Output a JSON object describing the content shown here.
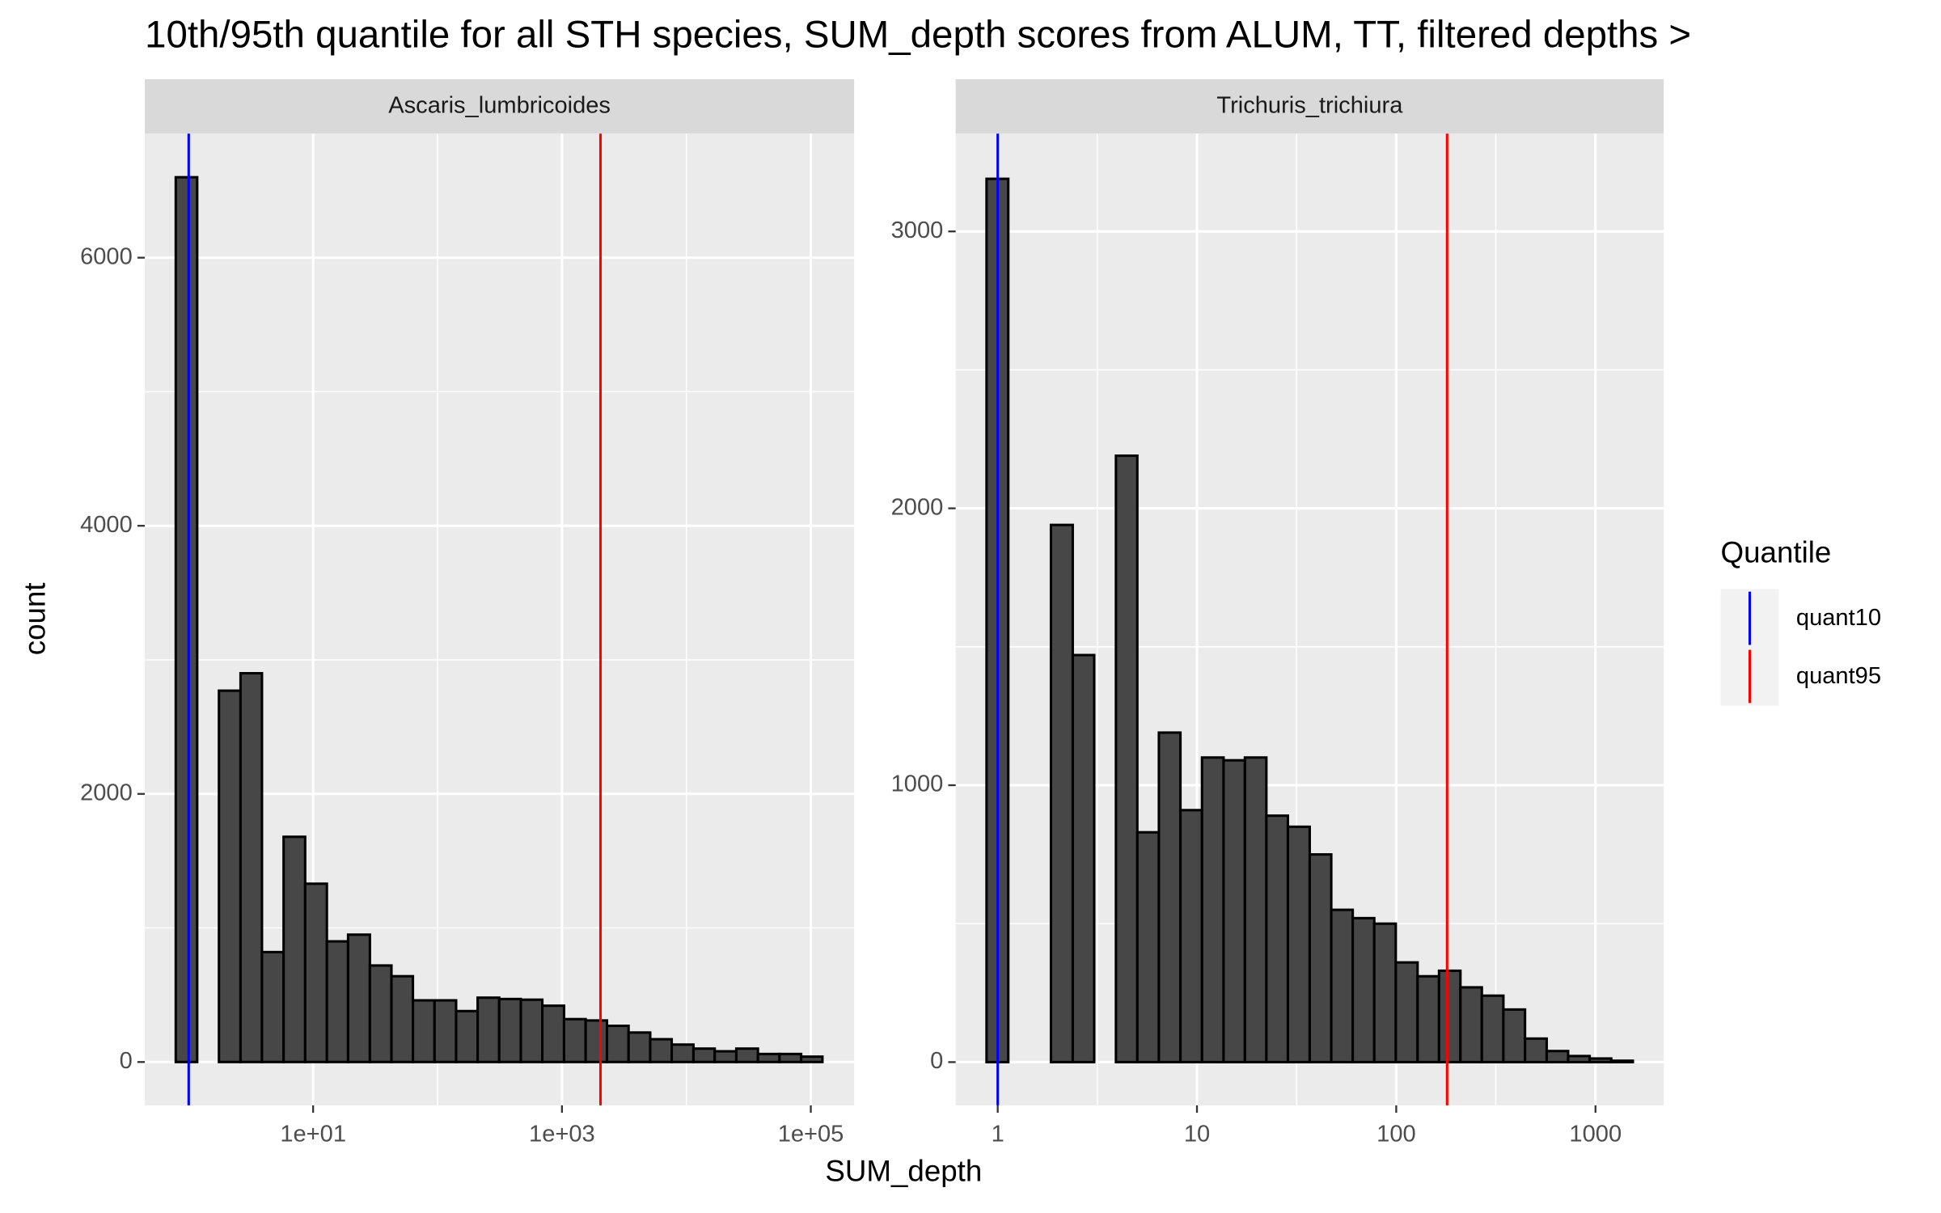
{
  "figure": {
    "title": "10th/95th quantile for all STH species, SUM_depth scores from ALUM, TT, filtered depths >",
    "x_label": "SUM_depth",
    "y_label": "count",
    "legend": {
      "title": "Quantile",
      "items": [
        {
          "name": "quant10",
          "color": "#0000ff"
        },
        {
          "name": "quant95",
          "color": "#ff0000"
        }
      ]
    }
  },
  "chart_data": [
    {
      "type": "histogram",
      "strip": "Ascaris_lumbricoides",
      "log_x": true,
      "grid": true,
      "color": "#474747",
      "bins": [
        0.787,
        1.17,
        1.75,
        2.61,
        3.88,
        5.79,
        8.63,
        12.9,
        19.1,
        28.6,
        42.6,
        63.4,
        94.6,
        141,
        210,
        313,
        467,
        695,
        1040,
        1550,
        2300,
        3430,
        5120,
        7620,
        11400,
        16900,
        25200,
        37600,
        56000,
        83600,
        124000
      ],
      "values": [
        6600,
        0,
        2770,
        2900,
        820,
        1680,
        1330,
        900,
        950,
        720,
        640,
        460,
        460,
        380,
        480,
        470,
        465,
        420,
        320,
        310,
        270,
        220,
        170,
        130,
        100,
        80,
        100,
        60,
        60,
        40
      ],
      "xlim": [
        0.444,
        223000
      ],
      "ylim": [
        -323,
        6925
      ],
      "xticks": [
        {
          "value": 10,
          "label": "1e+01"
        },
        {
          "value": 1000,
          "label": "1e+03"
        },
        {
          "value": 100000,
          "label": "1e+05"
        }
      ],
      "yticks": [
        0,
        2000,
        4000,
        6000
      ],
      "x_minor_ticks": [
        1,
        100,
        10000
      ],
      "y_minor_ticks": [
        1000,
        3000,
        5000
      ],
      "vlines": [
        {
          "value": 1,
          "color": "#0000ff"
        },
        {
          "value": 2040,
          "color": "#ff0000"
        }
      ]
    },
    {
      "type": "histogram",
      "strip": "Trichuris_trichiura",
      "log_x": true,
      "grid": true,
      "color": "#474747",
      "bins": [
        0.879,
        1.13,
        1.45,
        1.85,
        2.38,
        3.05,
        3.92,
        5.02,
        6.44,
        8.26,
        10.6,
        13.6,
        17.4,
        22.3,
        28.6,
        36.8,
        47.2,
        60.5,
        77.6,
        99.5,
        128,
        164,
        210,
        269,
        345,
        443,
        569,
        729,
        935,
        1200,
        1540
      ],
      "values": [
        3190,
        0,
        0,
        1940,
        1470,
        0,
        2190,
        830,
        1190,
        910,
        1100,
        1090,
        1100,
        890,
        850,
        750,
        550,
        520,
        500,
        360,
        310,
        330,
        270,
        240,
        190,
        85,
        40,
        22,
        13,
        5
      ],
      "xlim": [
        0.615,
        2200
      ],
      "ylim": [
        -156,
        3353
      ],
      "xticks": [
        1,
        10,
        100,
        1000
      ],
      "yticks": [
        0,
        1000,
        2000,
        3000
      ],
      "x_minor_ticks": [
        3.16,
        31.6,
        316
      ],
      "y_minor_ticks": [
        500,
        1500,
        2500
      ],
      "vlines": [
        {
          "value": 1,
          "color": "#0000ff"
        },
        {
          "value": 180,
          "color": "#ff0000"
        }
      ]
    }
  ]
}
